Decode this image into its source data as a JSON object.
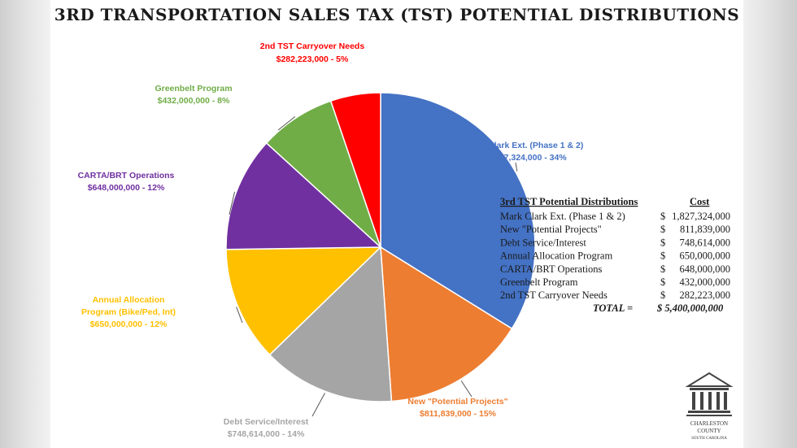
{
  "title": "3RD TRANSPORTATION SALES TAX (TST) POTENTIAL DISTRIBUTIONS",
  "chart_data": {
    "type": "pie",
    "title": "3RD TRANSPORTATION SALES TAX (TST) POTENTIAL DISTRIBUTIONS",
    "series": [
      {
        "name": "Mark Clark Ext. (Phase 1 & 2)",
        "value": 1827324000,
        "label_amount": "$1,827,324,000 - 34%",
        "percent": 34,
        "color": "#4472C4"
      },
      {
        "name": "New \"Potential Projects\"",
        "value": 811839000,
        "label_amount": "$811,839,000 - 15%",
        "percent": 15,
        "color": "#ED7D31"
      },
      {
        "name": "Debt Service/Interest",
        "value": 748614000,
        "label_amount": "$748,614,000 - 14%",
        "percent": 14,
        "color": "#A5A5A5"
      },
      {
        "name": "Annual Allocation Program (Bike/Ped, Int)",
        "value": 650000000,
        "label_amount": "$650,000,000 - 12%",
        "percent": 12,
        "color": "#FFC000"
      },
      {
        "name": "CARTA/BRT Operations",
        "value": 648000000,
        "label_amount": "$648,000,000 - 12%",
        "percent": 12,
        "color": "#7030A0"
      },
      {
        "name": "Greenbelt Program",
        "value": 432000000,
        "label_amount": "$432,000,000 - 8%",
        "percent": 8,
        "color": "#70AD47"
      },
      {
        "name": "2nd TST Carryover Needs",
        "value": 282223000,
        "label_amount": "$282,223,000 - 5%",
        "percent": 5,
        "color": "#FF0000"
      }
    ],
    "label_colors": [
      "#4472C4",
      "#ED7D31",
      "#A5A5A5",
      "#FFC000",
      "#7030A0",
      "#70AD47",
      "#FF0000"
    ],
    "legend": "none"
  },
  "slice_labels": [
    {
      "line1": "Mark Clark Ext. (Phase 1 & 2)",
      "line2": "$1,827,324,000 - 34%"
    },
    {
      "line1": "New \"Potential Projects\"",
      "line2": "$811,839,000 - 15%"
    },
    {
      "line1": "Debt Service/Interest",
      "line2": "$748,614,000 - 14%"
    },
    {
      "line1": "Annual Allocation",
      "line2": "Program (Bike/Ped, Int)",
      "line3": "$650,000,000 - 12%"
    },
    {
      "line1": "CARTA/BRT Operations",
      "line2": "$648,000,000 - 12%"
    },
    {
      "line1": "Greenbelt Program",
      "line2": "$432,000,000 - 8%"
    },
    {
      "line1": "2nd TST Carryover Needs",
      "line2": "$282,223,000 - 5%"
    }
  ],
  "table": {
    "header_name": "3rd TST Potential Distributions",
    "header_cost": "Cost",
    "rows": [
      {
        "name": "Mark Clark Ext. (Phase 1 & 2)",
        "dollar": "$",
        "amount": "1,827,324,000"
      },
      {
        "name": "New \"Potential Projects\"",
        "dollar": "$",
        "amount": "811,839,000"
      },
      {
        "name": "Debt Service/Interest",
        "dollar": "$",
        "amount": "748,614,000"
      },
      {
        "name": "Annual Allocation Program",
        "dollar": "$",
        "amount": "650,000,000"
      },
      {
        "name": "CARTA/BRT Operations",
        "dollar": "$",
        "amount": "648,000,000"
      },
      {
        "name": "Greenbelt Program",
        "dollar": "$",
        "amount": "432,000,000"
      },
      {
        "name": "2nd TST Carryover Needs",
        "dollar": "$",
        "amount": "282,223,000"
      }
    ],
    "total_label": "TOTAL =",
    "total_amount": "$ 5,400,000,000"
  },
  "logo": {
    "line1": "CHARLESTON",
    "line2": "COUNTY",
    "line3": "SOUTH CAROLINA",
    "icon": "courthouse-icon"
  }
}
